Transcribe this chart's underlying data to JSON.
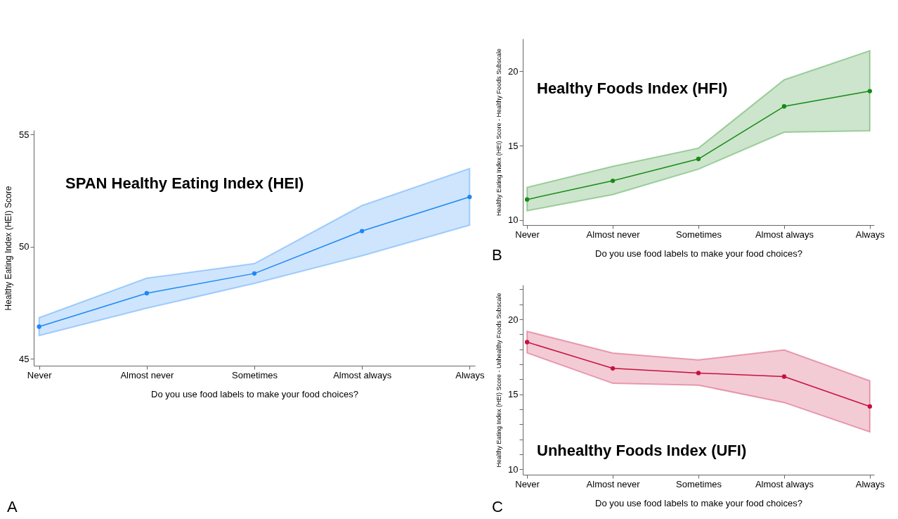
{
  "chart_data": [
    {
      "type": "line",
      "title": "SPAN Healthy Eating Index (HEI)",
      "xlabel": "Do you use food labels to make your food choices?",
      "ylabel": "Healthy Eating Index (HEI) Score",
      "categories": [
        "Never",
        "Almost never",
        "Sometimes",
        "Almost always",
        "Always"
      ],
      "series": [
        {
          "color": "#1e88f5",
          "values": [
            46.44,
            47.93,
            48.81,
            50.7,
            52.22
          ],
          "lower": [
            46.04,
            47.26,
            48.37,
            49.6,
            50.96
          ],
          "upper": [
            46.84,
            48.6,
            49.25,
            51.84,
            53.49
          ]
        }
      ],
      "ylim": [
        44.7,
        55.2
      ],
      "yticks": [
        45,
        50,
        55
      ],
      "marker": "circle",
      "grid": false,
      "annotations": [
        "A"
      ]
    },
    {
      "type": "line",
      "title": "Healthy Foods Index (HFI)",
      "xlabel": "Do you use food labels to make your food choices?",
      "ylabel": "Healthy Eating Index (HEI) Score - Healthy Foods Subscale",
      "categories": [
        "Never",
        "Almost never",
        "Sometimes",
        "Almost always",
        "Always"
      ],
      "series": [
        {
          "color": "#178a17",
          "values": [
            11.37,
            12.63,
            14.1,
            17.64,
            18.67
          ],
          "lower": [
            10.61,
            11.7,
            13.41,
            15.9,
            16.0
          ],
          "upper": [
            12.19,
            13.6,
            14.83,
            19.43,
            21.39
          ]
        }
      ],
      "ylim": [
        9.65,
        22.2
      ],
      "yticks": [
        10,
        15,
        20
      ],
      "marker": "circle",
      "grid": false,
      "annotations": [
        "B"
      ]
    },
    {
      "type": "line",
      "title": "Unhealthy Foods Index (UFI)",
      "xlabel": "Do you use food labels to make your food choices?",
      "ylabel": "Healthy Eating Index (HEI) Score - Unhealthy Foods Subscale",
      "categories": [
        "Never",
        "Almost never",
        "Sometimes",
        "Almost always",
        "Always"
      ],
      "series": [
        {
          "color": "#c8103e",
          "values": [
            18.48,
            16.73,
            16.42,
            16.18,
            14.19
          ],
          "lower": [
            17.76,
            15.73,
            15.61,
            14.45,
            12.49
          ],
          "upper": [
            19.2,
            17.75,
            17.29,
            17.96,
            15.9
          ]
        }
      ],
      "ylim": [
        9.64,
        22.3
      ],
      "yticks": [
        10,
        {
          "value": 11,
          "label": null
        },
        {
          "value": 12,
          "label": null
        },
        {
          "value": 13,
          "label": null
        },
        {
          "value": 14,
          "label": null
        },
        15,
        {
          "value": 16,
          "label": null
        },
        {
          "value": 17,
          "label": null
        },
        {
          "value": 18,
          "label": null
        },
        {
          "value": 19,
          "label": null
        },
        20,
        {
          "value": 21,
          "label": null
        },
        {
          "value": 22,
          "label": null
        }
      ],
      "marker": "circle",
      "grid": false,
      "annotations": [
        "C"
      ]
    }
  ]
}
